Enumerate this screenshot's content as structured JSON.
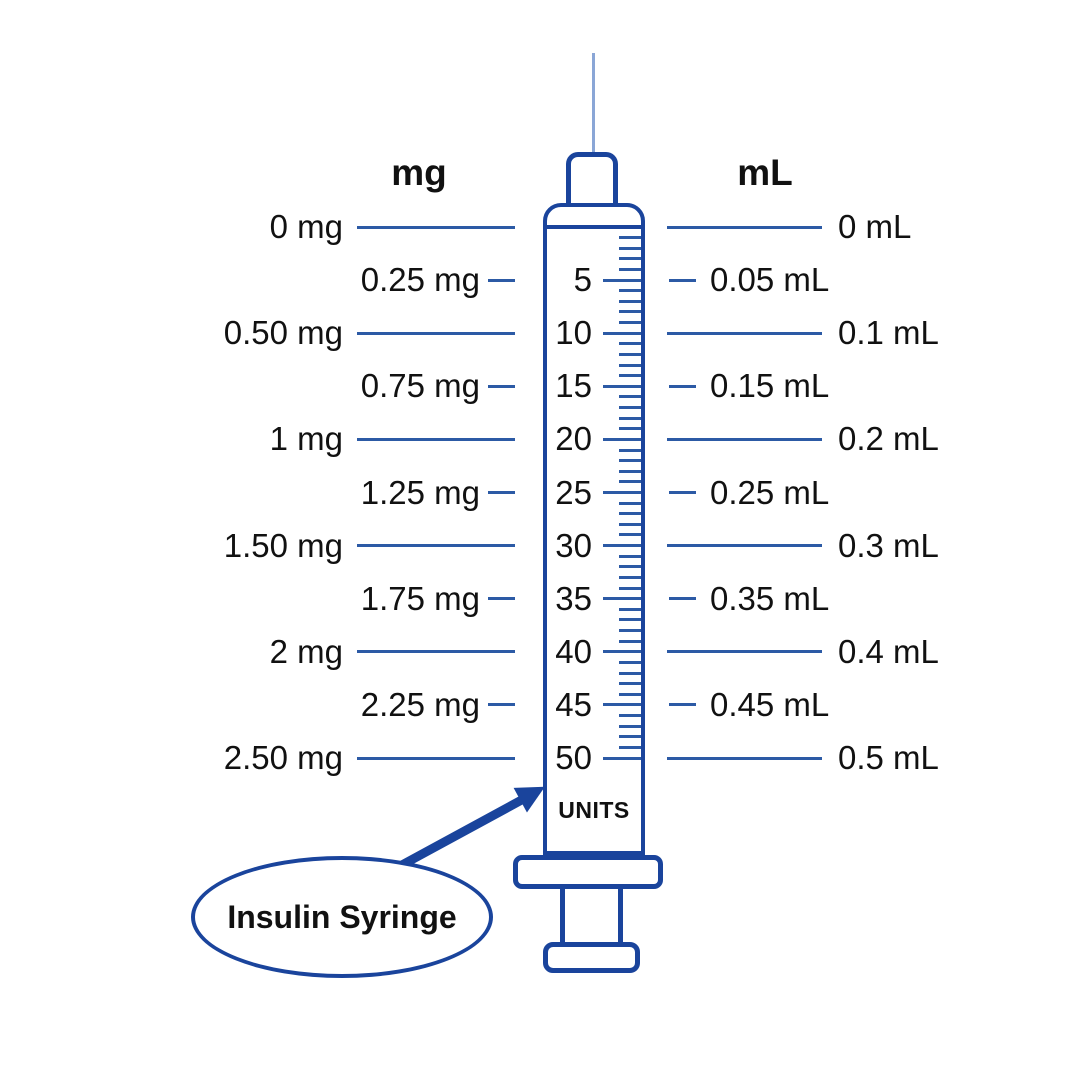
{
  "diagram": {
    "left_header": "mg",
    "right_header": "mL",
    "units_label": "UNITS",
    "callout_label": "Insulin Syringe",
    "scale_max_units": 50,
    "minor_tick_every_units": 1,
    "major_tick_every_units": 5,
    "rows": [
      {
        "units": 0,
        "unit_label": "",
        "mg": "0 mg",
        "ml": "0 mL",
        "major": true
      },
      {
        "units": 5,
        "unit_label": "5",
        "mg": "0.25 mg",
        "ml": "0.05 mL",
        "major": false
      },
      {
        "units": 10,
        "unit_label": "10",
        "mg": "0.50 mg",
        "ml": "0.1 mL",
        "major": true
      },
      {
        "units": 15,
        "unit_label": "15",
        "mg": "0.75 mg",
        "ml": "0.15 mL",
        "major": false
      },
      {
        "units": 20,
        "unit_label": "20",
        "mg": "1 mg",
        "ml": "0.2 mL",
        "major": true
      },
      {
        "units": 25,
        "unit_label": "25",
        "mg": "1.25 mg",
        "ml": "0.25 mL",
        "major": false
      },
      {
        "units": 30,
        "unit_label": "30",
        "mg": "1.50 mg",
        "ml": "0.3 mL",
        "major": true
      },
      {
        "units": 35,
        "unit_label": "35",
        "mg": "1.75 mg",
        "ml": "0.35 mL",
        "major": false
      },
      {
        "units": 40,
        "unit_label": "40",
        "mg": "2 mg",
        "ml": "0.4 mL",
        "major": true
      },
      {
        "units": 45,
        "unit_label": "45",
        "mg": "2.25 mg",
        "ml": "0.45 mL",
        "major": false
      },
      {
        "units": 50,
        "unit_label": "50",
        "mg": "2.50 mg",
        "ml": "0.5 mL",
        "major": true
      }
    ]
  },
  "colors": {
    "outline": "#1a449c",
    "line": "#2c5aa5",
    "needle": "#8aa6d6",
    "text": "#111111"
  }
}
